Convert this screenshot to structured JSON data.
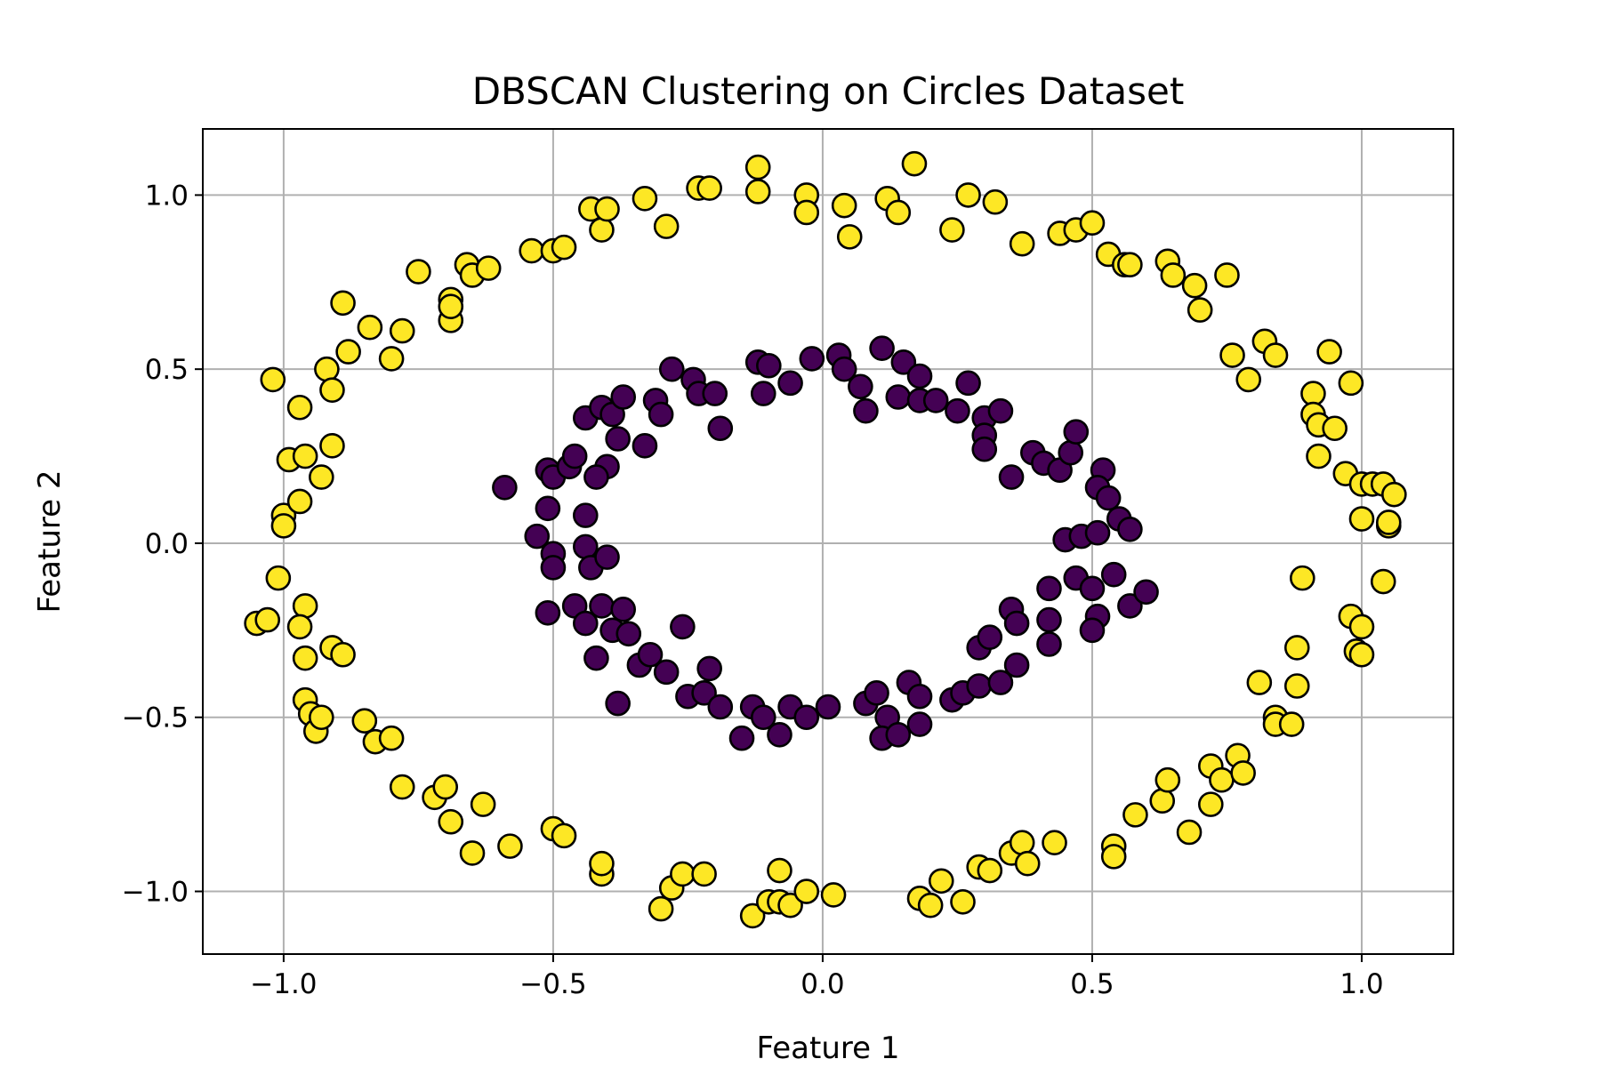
{
  "chart_data": {
    "type": "scatter",
    "title": "DBSCAN Clustering on Circles Dataset",
    "xlabel": "Feature 1",
    "ylabel": "Feature 2",
    "xlim": [
      -1.15,
      1.17
    ],
    "ylim": [
      -1.18,
      1.19
    ],
    "xticks": [
      -1.0,
      -0.5,
      0.0,
      0.5,
      1.0
    ],
    "xtick_labels": [
      "−1.0",
      "−0.5",
      "0.0",
      "0.5",
      "1.0"
    ],
    "yticks": [
      -1.0,
      -0.5,
      0.0,
      0.5,
      1.0
    ],
    "ytick_labels": [
      "−1.0",
      "−0.5",
      "0.0",
      "0.5",
      "1.0"
    ],
    "grid": true,
    "colors": {
      "cluster_0": "#440154",
      "cluster_1": "#fde725",
      "edge": "#000000"
    },
    "series": [
      {
        "color": "#440154",
        "points": [
          [
            -0.59,
            0.16
          ],
          [
            -0.53,
            0.02
          ],
          [
            -0.51,
            0.21
          ],
          [
            -0.5,
            0.19
          ],
          [
            -0.51,
            0.1
          ],
          [
            -0.5,
            -0.03
          ],
          [
            -0.51,
            -0.2
          ],
          [
            -0.5,
            -0.07
          ],
          [
            -0.47,
            0.22
          ],
          [
            -0.46,
            0.25
          ],
          [
            -0.44,
            0.08
          ],
          [
            -0.44,
            -0.01
          ],
          [
            -0.43,
            -0.07
          ],
          [
            -0.46,
            -0.18
          ],
          [
            -0.44,
            -0.23
          ],
          [
            -0.42,
            -0.33
          ],
          [
            -0.44,
            0.36
          ],
          [
            -0.41,
            0.39
          ],
          [
            -0.39,
            0.37
          ],
          [
            -0.37,
            0.42
          ],
          [
            -0.38,
            0.3
          ],
          [
            -0.4,
            0.22
          ],
          [
            -0.42,
            0.19
          ],
          [
            -0.4,
            -0.04
          ],
          [
            -0.41,
            -0.18
          ],
          [
            -0.39,
            -0.25
          ],
          [
            -0.37,
            -0.19
          ],
          [
            -0.36,
            -0.26
          ],
          [
            -0.34,
            -0.35
          ],
          [
            -0.32,
            -0.32
          ],
          [
            -0.38,
            -0.46
          ],
          [
            -0.33,
            0.28
          ],
          [
            -0.31,
            0.41
          ],
          [
            -0.3,
            0.37
          ],
          [
            -0.28,
            0.5
          ],
          [
            -0.24,
            0.47
          ],
          [
            -0.23,
            0.43
          ],
          [
            -0.2,
            0.43
          ],
          [
            -0.19,
            0.33
          ],
          [
            -0.26,
            -0.24
          ],
          [
            -0.29,
            -0.37
          ],
          [
            -0.25,
            -0.44
          ],
          [
            -0.22,
            -0.43
          ],
          [
            -0.21,
            -0.36
          ],
          [
            -0.19,
            -0.47
          ],
          [
            -0.15,
            -0.56
          ],
          [
            -0.13,
            -0.47
          ],
          [
            -0.11,
            -0.5
          ],
          [
            -0.08,
            -0.55
          ],
          [
            -0.06,
            -0.47
          ],
          [
            -0.03,
            -0.5
          ],
          [
            0.01,
            -0.47
          ],
          [
            -0.12,
            0.52
          ],
          [
            -0.1,
            0.51
          ],
          [
            -0.11,
            0.43
          ],
          [
            -0.06,
            0.46
          ],
          [
            -0.02,
            0.53
          ],
          [
            0.03,
            0.54
          ],
          [
            0.04,
            0.5
          ],
          [
            0.07,
            0.45
          ],
          [
            0.08,
            0.38
          ],
          [
            0.11,
            0.56
          ],
          [
            0.14,
            0.42
          ],
          [
            0.15,
            0.52
          ],
          [
            0.18,
            0.48
          ],
          [
            0.18,
            0.41
          ],
          [
            0.08,
            -0.46
          ],
          [
            0.1,
            -0.43
          ],
          [
            0.12,
            -0.5
          ],
          [
            0.11,
            -0.56
          ],
          [
            0.14,
            -0.55
          ],
          [
            0.16,
            -0.4
          ],
          [
            0.18,
            -0.44
          ],
          [
            0.18,
            -0.52
          ],
          [
            0.21,
            0.41
          ],
          [
            0.25,
            0.38
          ],
          [
            0.27,
            0.46
          ],
          [
            0.3,
            0.36
          ],
          [
            0.33,
            0.38
          ],
          [
            0.3,
            0.31
          ],
          [
            0.3,
            0.27
          ],
          [
            0.35,
            0.19
          ],
          [
            0.39,
            0.26
          ],
          [
            0.41,
            0.23
          ],
          [
            0.44,
            0.21
          ],
          [
            0.46,
            0.26
          ],
          [
            0.47,
            0.32
          ],
          [
            0.52,
            0.21
          ],
          [
            0.51,
            0.16
          ],
          [
            0.53,
            0.13
          ],
          [
            0.55,
            0.07
          ],
          [
            0.57,
            0.04
          ],
          [
            0.45,
            0.01
          ],
          [
            0.48,
            0.02
          ],
          [
            0.51,
            0.03
          ],
          [
            0.24,
            -0.45
          ],
          [
            0.26,
            -0.43
          ],
          [
            0.29,
            -0.41
          ],
          [
            0.29,
            -0.3
          ],
          [
            0.31,
            -0.27
          ],
          [
            0.33,
            -0.4
          ],
          [
            0.36,
            -0.35
          ],
          [
            0.35,
            -0.19
          ],
          [
            0.36,
            -0.23
          ],
          [
            0.42,
            -0.13
          ],
          [
            0.42,
            -0.22
          ],
          [
            0.42,
            -0.29
          ],
          [
            0.47,
            -0.1
          ],
          [
            0.5,
            -0.13
          ],
          [
            0.51,
            -0.21
          ],
          [
            0.5,
            -0.25
          ],
          [
            0.54,
            -0.09
          ],
          [
            0.57,
            -0.18
          ],
          [
            0.6,
            -0.14
          ]
        ]
      },
      {
        "color": "#fde725",
        "points": [
          [
            -1.05,
            -0.23
          ],
          [
            -1.03,
            -0.22
          ],
          [
            -1.02,
            0.47
          ],
          [
            -1.01,
            -0.1
          ],
          [
            -1.0,
            0.08
          ],
          [
            -1.0,
            0.05
          ],
          [
            -0.99,
            0.24
          ],
          [
            -0.97,
            0.12
          ],
          [
            -0.97,
            0.39
          ],
          [
            -0.96,
            0.25
          ],
          [
            -0.96,
            -0.18
          ],
          [
            -0.97,
            -0.24
          ],
          [
            -0.96,
            -0.33
          ],
          [
            -0.96,
            -0.45
          ],
          [
            -0.95,
            -0.49
          ],
          [
            -0.94,
            -0.54
          ],
          [
            -0.93,
            -0.5
          ],
          [
            -0.92,
            0.5
          ],
          [
            -0.91,
            0.44
          ],
          [
            -0.91,
            0.28
          ],
          [
            -0.93,
            0.19
          ],
          [
            -0.91,
            -0.3
          ],
          [
            -0.89,
            -0.32
          ],
          [
            -0.89,
            0.69
          ],
          [
            -0.88,
            0.55
          ],
          [
            -0.84,
            0.62
          ],
          [
            -0.85,
            -0.51
          ],
          [
            -0.83,
            -0.57
          ],
          [
            -0.8,
            -0.56
          ],
          [
            -0.8,
            0.53
          ],
          [
            -0.78,
            0.61
          ],
          [
            -0.75,
            0.78
          ],
          [
            -0.78,
            -0.7
          ],
          [
            -0.72,
            -0.73
          ],
          [
            -0.7,
            -0.7
          ],
          [
            -0.69,
            -0.8
          ],
          [
            -0.69,
            0.7
          ],
          [
            -0.69,
            0.64
          ],
          [
            -0.69,
            0.68
          ],
          [
            -0.66,
            0.8
          ],
          [
            -0.65,
            0.77
          ],
          [
            -0.62,
            0.79
          ],
          [
            -0.63,
            -0.75
          ],
          [
            -0.65,
            -0.89
          ],
          [
            -0.58,
            -0.87
          ],
          [
            -0.54,
            0.84
          ],
          [
            -0.5,
            0.84
          ],
          [
            -0.48,
            0.85
          ],
          [
            -0.5,
            -0.82
          ],
          [
            -0.48,
            -0.84
          ],
          [
            -0.43,
            0.96
          ],
          [
            -0.41,
            0.9
          ],
          [
            -0.4,
            0.96
          ],
          [
            -0.41,
            -0.95
          ],
          [
            -0.41,
            -0.92
          ],
          [
            -0.33,
            0.99
          ],
          [
            -0.29,
            0.91
          ],
          [
            -0.3,
            -1.05
          ],
          [
            -0.28,
            -0.99
          ],
          [
            -0.26,
            -0.95
          ],
          [
            -0.23,
            1.02
          ],
          [
            -0.21,
            1.02
          ],
          [
            -0.22,
            -0.95
          ],
          [
            -0.12,
            1.08
          ],
          [
            -0.12,
            1.01
          ],
          [
            -0.13,
            -1.07
          ],
          [
            -0.1,
            -1.03
          ],
          [
            -0.08,
            -0.94
          ],
          [
            -0.08,
            -1.03
          ],
          [
            -0.06,
            -1.04
          ],
          [
            -0.03,
            -1.0
          ],
          [
            -0.03,
            1.0
          ],
          [
            -0.03,
            0.95
          ],
          [
            0.02,
            -1.01
          ],
          [
            0.04,
            0.97
          ],
          [
            0.05,
            0.88
          ],
          [
            0.12,
            0.99
          ],
          [
            0.14,
            0.95
          ],
          [
            0.17,
            1.09
          ],
          [
            0.18,
            -1.02
          ],
          [
            0.2,
            -1.04
          ],
          [
            0.22,
            -0.97
          ],
          [
            0.24,
            0.9
          ],
          [
            0.27,
            1.0
          ],
          [
            0.26,
            -1.03
          ],
          [
            0.29,
            -0.93
          ],
          [
            0.31,
            -0.94
          ],
          [
            0.32,
            0.98
          ],
          [
            0.35,
            -0.89
          ],
          [
            0.37,
            -0.86
          ],
          [
            0.38,
            -0.92
          ],
          [
            0.37,
            0.86
          ],
          [
            0.43,
            -0.86
          ],
          [
            0.44,
            0.89
          ],
          [
            0.47,
            0.9
          ],
          [
            0.5,
            0.92
          ],
          [
            0.53,
            0.83
          ],
          [
            0.54,
            -0.87
          ],
          [
            0.54,
            -0.9
          ],
          [
            0.56,
            0.8
          ],
          [
            0.57,
            0.8
          ],
          [
            0.58,
            -0.78
          ],
          [
            0.63,
            -0.74
          ],
          [
            0.64,
            -0.68
          ],
          [
            0.64,
            0.81
          ],
          [
            0.65,
            0.77
          ],
          [
            0.68,
            -0.83
          ],
          [
            0.69,
            0.74
          ],
          [
            0.7,
            0.67
          ],
          [
            0.72,
            -0.75
          ],
          [
            0.72,
            -0.64
          ],
          [
            0.74,
            -0.68
          ],
          [
            0.75,
            0.77
          ],
          [
            0.76,
            0.54
          ],
          [
            0.77,
            -0.61
          ],
          [
            0.78,
            -0.66
          ],
          [
            0.79,
            0.47
          ],
          [
            0.82,
            0.58
          ],
          [
            0.84,
            0.54
          ],
          [
            0.81,
            -0.4
          ],
          [
            0.84,
            -0.5
          ],
          [
            0.84,
            -0.52
          ],
          [
            0.87,
            -0.52
          ],
          [
            0.88,
            -0.41
          ],
          [
            0.88,
            -0.3
          ],
          [
            0.89,
            -0.1
          ],
          [
            0.91,
            0.43
          ],
          [
            0.91,
            0.37
          ],
          [
            0.92,
            0.25
          ],
          [
            0.92,
            0.34
          ],
          [
            0.94,
            0.55
          ],
          [
            0.95,
            0.33
          ],
          [
            0.98,
            0.46
          ],
          [
            0.97,
            0.2
          ],
          [
            0.98,
            -0.21
          ],
          [
            1.0,
            -0.24
          ],
          [
            0.99,
            -0.31
          ],
          [
            1.0,
            -0.32
          ],
          [
            1.0,
            0.17
          ],
          [
            1.0,
            0.07
          ],
          [
            1.02,
            0.17
          ],
          [
            1.04,
            0.17
          ],
          [
            1.05,
            0.05
          ],
          [
            1.05,
            0.06
          ],
          [
            1.06,
            0.14
          ],
          [
            1.04,
            -0.11
          ]
        ]
      }
    ]
  }
}
